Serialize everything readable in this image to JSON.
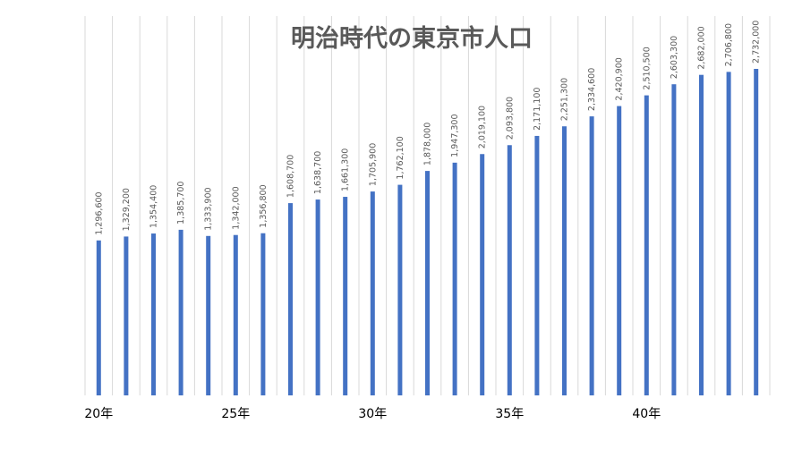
{
  "chart_data": {
    "type": "bar",
    "title": "明治時代の東京市人口",
    "xlabel": "",
    "ylabel": "",
    "categories": [
      "20",
      "21",
      "22",
      "23",
      "24",
      "25",
      "26",
      "27",
      "28",
      "29",
      "30",
      "31",
      "32",
      "33",
      "34",
      "35",
      "36",
      "37",
      "38",
      "39",
      "40",
      "41",
      "42",
      "43",
      "44"
    ],
    "x_tick_labels": [
      {
        "index": 0,
        "text": "20年"
      },
      {
        "index": 5,
        "text": "25年"
      },
      {
        "index": 10,
        "text": "30年"
      },
      {
        "index": 15,
        "text": "35年"
      },
      {
        "index": 20,
        "text": "40年"
      }
    ],
    "values": [
      1296600,
      1329200,
      1354400,
      1385700,
      1333900,
      1342000,
      1356800,
      1608700,
      1638700,
      1661300,
      1705900,
      1762100,
      1878000,
      1947300,
      2019100,
      2093800,
      2171100,
      2251300,
      2334600,
      2420900,
      2510500,
      2603300,
      2682000,
      2706800,
      2732000
    ],
    "data_labels": [
      "1,296,600",
      "1,329,200",
      "1,354,400",
      "1,385,700",
      "1,333,900",
      "1,342,000",
      "1,356,800",
      "1,608,700",
      "1,638,700",
      "1,661,300",
      "1,705,900",
      "1,762,100",
      "1,878,000",
      "1,947,300",
      "2,019,100",
      "2,093,800",
      "2,171,100",
      "2,251,300",
      "2,334,600",
      "2,420,900",
      "2,510,500",
      "2,603,300",
      "2,682,000",
      "2,706,800",
      "2,732,000"
    ],
    "ylim": [
      0,
      2732000
    ],
    "grid": true,
    "bar_color": "#4472c4",
    "grid_color": "#d9d9d9",
    "legend": "none"
  }
}
